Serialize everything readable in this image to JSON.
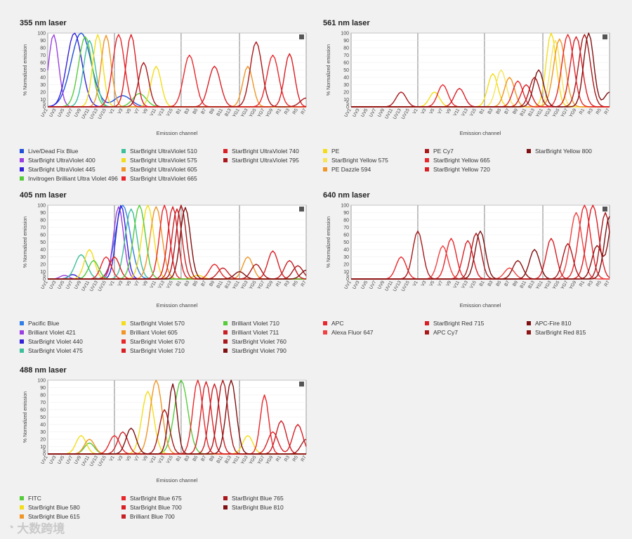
{
  "colors": {
    "blue": "#1f4ed8",
    "blue2": "#2f7fe6",
    "purple": "#9b3fe0",
    "violet": "#3420d8",
    "teal": "#3cbf9a",
    "green": "#55cc3a",
    "yellow": "#f3dd18",
    "orange": "#f09526",
    "red": "#e8262b",
    "red2": "#d91e24",
    "darkred": "#a8181b",
    "maroon": "#7e1010"
  },
  "watermark": "大数跨境",
  "chart_data": [
    {
      "type": "line",
      "title": "355 nm laser",
      "xlabel": "Emission channel",
      "ylabel": "% Normalized emission",
      "ylim": [
        0,
        100
      ],
      "yticks": [
        "0",
        "5",
        "10",
        "20",
        "30",
        "40",
        "50",
        "60",
        "70",
        "80",
        "90",
        "100"
      ],
      "categories": [
        "UV1",
        "UV3",
        "UV5",
        "UV7",
        "UV9",
        "UV11",
        "UV13",
        "UV15",
        "V1",
        "V3",
        "V5",
        "V7",
        "V9",
        "V11",
        "V13",
        "V15",
        "B1",
        "B3",
        "B5",
        "B7",
        "B9",
        "B11",
        "B13",
        "YG1",
        "YG3",
        "YG5",
        "YG7",
        "YG9",
        "R1",
        "R3",
        "R5",
        "R7"
      ],
      "legend_columns": 3,
      "series": [
        {
          "name": "Live/Dead Fix Blue",
          "color": "#1f4ed8",
          "peaks": [
            [
              4,
              100,
              1.2
            ],
            [
              9,
              15,
              1
            ]
          ]
        },
        {
          "name": "StarBright UltraViolet 400",
          "color": "#9b3fe0",
          "peaks": [
            [
              0.7,
              98,
              0.6
            ]
          ]
        },
        {
          "name": "StarBright UltraViolet 445",
          "color": "#3420d8",
          "peaks": [
            [
              3.2,
              100,
              0.9
            ]
          ]
        },
        {
          "name": "Invitrogen Brilliant Ultra Violet 496",
          "color": "#55cc3a",
          "peaks": [
            [
              4.5,
              95,
              0.8
            ],
            [
              11,
              18,
              0.8
            ]
          ]
        },
        {
          "name": "StarBright UltraViolet 510",
          "color": "#3cbf9a",
          "peaks": [
            [
              5,
              90,
              0.7
            ]
          ]
        },
        {
          "name": "StarBright UltraViolet 575",
          "color": "#f3dd18",
          "peaks": [
            [
              6,
              98,
              0.6
            ],
            [
              13,
              55,
              0.6
            ]
          ]
        },
        {
          "name": "StarBright UltraViolet 605",
          "color": "#f09526",
          "peaks": [
            [
              7,
              97,
              0.6
            ],
            [
              24,
              55,
              0.6
            ]
          ]
        },
        {
          "name": "StarBright UltraViolet 665",
          "color": "#e8262b",
          "peaks": [
            [
              8.5,
              98,
              0.7
            ],
            [
              17,
              70,
              0.7
            ],
            [
              27,
              70,
              0.7
            ]
          ]
        },
        {
          "name": "StarBright UltraViolet 740",
          "color": "#d91e24",
          "peaks": [
            [
              10,
              98,
              0.6
            ],
            [
              20,
              55,
              0.7
            ],
            [
              29,
              72,
              0.6
            ]
          ]
        },
        {
          "name": "StarBright UltraViolet 795",
          "color": "#a8181b",
          "peaks": [
            [
              11.5,
              60,
              0.6
            ],
            [
              25,
              88,
              0.7
            ],
            [
              31,
              12,
              0.7
            ]
          ]
        }
      ]
    },
    {
      "type": "line",
      "title": "561 nm laser",
      "xlabel": "Emission channel",
      "ylabel": "% Normalized emission",
      "ylim": [
        0,
        100
      ],
      "yticks": [
        "0",
        "5",
        "10",
        "20",
        "30",
        "40",
        "50",
        "60",
        "70",
        "80",
        "90",
        "100"
      ],
      "categories": [
        "UV1",
        "UV3",
        "UV5",
        "UV7",
        "UV9",
        "UV11",
        "UV13",
        "UV15",
        "V1",
        "V3",
        "V5",
        "V7",
        "V9",
        "V11",
        "V13",
        "V15",
        "B1",
        "B3",
        "B5",
        "B7",
        "B9",
        "B11",
        "B13",
        "YG1",
        "YG3",
        "YG5",
        "YG7",
        "YG9",
        "R1",
        "R3",
        "R5",
        "R7"
      ],
      "legend_columns": 3,
      "series": [
        {
          "name": "PE",
          "color": "#f3dd18",
          "peaks": [
            [
              24,
              100,
              0.6
            ],
            [
              17,
              45,
              0.6
            ],
            [
              10,
              20,
              0.6
            ]
          ]
        },
        {
          "name": "StarBright Yellow 575",
          "color": "#f7e45a",
          "peaks": [
            [
              24.5,
              90,
              0.6
            ],
            [
              18,
              50,
              0.6
            ]
          ]
        },
        {
          "name": "PE Dazzle 594",
          "color": "#f09526",
          "peaks": [
            [
              25,
              92,
              0.7
            ],
            [
              19,
              40,
              0.6
            ]
          ]
        },
        {
          "name": "PE Cy7",
          "color": "#a8181b",
          "peaks": [
            [
              28,
              98,
              0.7
            ],
            [
              22,
              40,
              0.6
            ],
            [
              6,
              20,
              0.6
            ]
          ]
        },
        {
          "name": "StarBright Yellow 665",
          "color": "#e8262b",
          "peaks": [
            [
              26,
              98,
              0.7
            ],
            [
              20,
              35,
              0.6
            ],
            [
              11,
              30,
              0.6
            ]
          ]
        },
        {
          "name": "StarBright Yellow 720",
          "color": "#d91e24",
          "peaks": [
            [
              27,
              95,
              0.7
            ],
            [
              21,
              30,
              0.6
            ],
            [
              13,
              25,
              0.6
            ]
          ]
        },
        {
          "name": "StarBright Yellow 800",
          "color": "#7e1010",
          "peaks": [
            [
              28.5,
              100,
              0.6
            ],
            [
              22.5,
              50,
              0.6
            ],
            [
              31,
              20,
              0.6
            ]
          ]
        }
      ]
    },
    {
      "type": "line",
      "title": "405 nm laser",
      "xlabel": "Emission channel",
      "ylabel": "% Normalized emission",
      "ylim": [
        0,
        100
      ],
      "yticks": [
        "0",
        "5",
        "10",
        "20",
        "30",
        "40",
        "50",
        "60",
        "70",
        "80",
        "90",
        "100"
      ],
      "categories": [
        "UV1",
        "UV3",
        "UV5",
        "UV7",
        "UV9",
        "UV11",
        "UV13",
        "UV15",
        "V1",
        "V3",
        "V5",
        "V7",
        "V9",
        "V11",
        "V13",
        "V15",
        "B1",
        "B3",
        "B5",
        "B7",
        "B9",
        "B11",
        "B13",
        "YG1",
        "YG3",
        "YG5",
        "YG7",
        "YG9",
        "R1",
        "R3",
        "R5",
        "R7"
      ],
      "legend_columns": 3,
      "series": [
        {
          "name": "Pacific Blue",
          "color": "#2f7fe6",
          "peaks": [
            [
              9,
              100,
              0.9
            ]
          ]
        },
        {
          "name": "Brilliant Violet 421",
          "color": "#9b3fe0",
          "peaks": [
            [
              8.5,
              98,
              0.6
            ],
            [
              2,
              5,
              0.5
            ]
          ]
        },
        {
          "name": "StarBright Violet 440",
          "color": "#3420d8",
          "peaks": [
            [
              8.8,
              100,
              0.6
            ],
            [
              3,
              6,
              0.5
            ]
          ]
        },
        {
          "name": "StarBright Violet 475",
          "color": "#3cbf9a",
          "peaks": [
            [
              10,
              95,
              0.7
            ],
            [
              4,
              33,
              0.7
            ]
          ]
        },
        {
          "name": "StarBright Violet 570",
          "color": "#f3dd18",
          "peaks": [
            [
              12,
              100,
              0.7
            ],
            [
              5,
              40,
              0.6
            ],
            [
              18,
              5,
              0.6
            ]
          ]
        },
        {
          "name": "Brilliant Violet 605",
          "color": "#f09526",
          "peaks": [
            [
              13,
              98,
              0.7
            ],
            [
              24,
              30,
              0.6
            ]
          ]
        },
        {
          "name": "StarBright Violet 670",
          "color": "#e8262b",
          "peaks": [
            [
              14,
              100,
              0.6
            ],
            [
              7,
              30,
              0.6
            ],
            [
              20,
              20,
              0.6
            ]
          ]
        },
        {
          "name": "StarBright Violet 710",
          "color": "#d91e24",
          "peaks": [
            [
              15,
              98,
              0.6
            ],
            [
              8,
              30,
              0.6
            ],
            [
              27,
              38,
              0.6
            ]
          ]
        },
        {
          "name": "Brilliant Violet 710",
          "color": "#55cc3a",
          "peaks": [
            [
              11,
              100,
              0.7
            ],
            [
              5.5,
              25,
              0.6
            ]
          ]
        },
        {
          "name": "Brilliant Violet 711",
          "color": "#c81f24",
          "peaks": [
            [
              15.5,
              95,
              0.6
            ],
            [
              21,
              15,
              0.6
            ],
            [
              29,
              25,
              0.6
            ]
          ]
        },
        {
          "name": "StarBright Violet 760",
          "color": "#a8181b",
          "peaks": [
            [
              16,
              100,
              0.6
            ],
            [
              25,
              20,
              0.6
            ],
            [
              30,
              18,
              0.6
            ]
          ]
        },
        {
          "name": "StarBright Violet 790",
          "color": "#7e1010",
          "peaks": [
            [
              16.5,
              97,
              0.6
            ],
            [
              23,
              10,
              0.6
            ],
            [
              31,
              12,
              0.6
            ]
          ]
        }
      ]
    },
    {
      "type": "line",
      "title": "640 nm laser",
      "xlabel": "Emission channel",
      "ylabel": "% Normalized emission",
      "ylim": [
        0,
        100
      ],
      "yticks": [
        "0",
        "5",
        "10",
        "20",
        "30",
        "40",
        "50",
        "60",
        "70",
        "80",
        "90",
        "100"
      ],
      "categories": [
        "UV1",
        "UV3",
        "UV5",
        "UV7",
        "UV9",
        "UV11",
        "UV13",
        "UV15",
        "V1",
        "V3",
        "V5",
        "V7",
        "V9",
        "V11",
        "V13",
        "V15",
        "B1",
        "B3",
        "B5",
        "B7",
        "B9",
        "B11",
        "B13",
        "YG1",
        "YG3",
        "YG5",
        "YG7",
        "YG9",
        "R1",
        "R3",
        "R5",
        "R7"
      ],
      "legend_columns": 3,
      "series": [
        {
          "name": "APC",
          "color": "#e8262b",
          "peaks": [
            [
              28,
              100,
              0.7
            ],
            [
              12,
              55,
              0.6
            ],
            [
              6,
              30,
              0.6
            ]
          ]
        },
        {
          "name": "Alexa Fluor 647",
          "color": "#f04040",
          "peaks": [
            [
              27,
              90,
              0.7
            ],
            [
              11,
              45,
              0.6
            ],
            [
              19,
              15,
              0.6
            ]
          ]
        },
        {
          "name": "StarBright Red 715",
          "color": "#d91e24",
          "peaks": [
            [
              29,
              100,
              0.7
            ],
            [
              14,
              52,
              0.6
            ],
            [
              24,
              55,
              0.6
            ]
          ]
        },
        {
          "name": "APC Cy7",
          "color": "#a8181b",
          "peaks": [
            [
              30.5,
              90,
              0.6
            ],
            [
              15,
              62,
              0.6
            ],
            [
              26,
              48,
              0.6
            ],
            [
              8,
              65,
              0.6
            ]
          ]
        },
        {
          "name": "APC-Fire 810",
          "color": "#7e1010",
          "peaks": [
            [
              31,
              85,
              0.6
            ],
            [
              22,
              40,
              0.6
            ],
            [
              15.5,
              65,
              0.6
            ]
          ]
        },
        {
          "name": "StarBright Red 815",
          "color": "#8b1414",
          "peaks": [
            [
              31.5,
              88,
              0.6
            ],
            [
              29.5,
              45,
              0.6
            ],
            [
              20,
              25,
              0.6
            ]
          ]
        }
      ]
    },
    {
      "type": "line",
      "title": "488 nm laser",
      "xlabel": "Emission channel",
      "ylabel": "% Normalized emission",
      "ylim": [
        0,
        100
      ],
      "yticks": [
        "0",
        "5",
        "10",
        "20",
        "30",
        "40",
        "50",
        "60",
        "70",
        "80",
        "90",
        "100"
      ],
      "categories": [
        "UV1",
        "UV3",
        "UV5",
        "UV7",
        "UV9",
        "UV11",
        "UV13",
        "UV15",
        "V1",
        "V3",
        "V5",
        "V7",
        "V9",
        "V11",
        "V13",
        "V15",
        "B1",
        "B3",
        "B5",
        "B7",
        "B9",
        "B11",
        "B13",
        "YG1",
        "YG3",
        "YG5",
        "YG7",
        "YG9",
        "R1",
        "R3",
        "R5",
        "R7"
      ],
      "legend_columns": 3,
      "series": [
        {
          "name": "FITC",
          "color": "#55cc3a",
          "peaks": [
            [
              16,
              100,
              0.8
            ],
            [
              5,
              15,
              0.6
            ]
          ]
        },
        {
          "name": "StarBright Blue 580",
          "color": "#f3dd18",
          "peaks": [
            [
              12,
              85,
              0.7
            ],
            [
              4,
              25,
              0.6
            ],
            [
              24,
              25,
              0.6
            ]
          ]
        },
        {
          "name": "StarBright Blue 615",
          "color": "#f09526",
          "peaks": [
            [
              13,
              100,
              0.7
            ],
            [
              5,
              20,
              0.6
            ]
          ]
        },
        {
          "name": "StarBright Blue 675",
          "color": "#e8262b",
          "peaks": [
            [
              18,
              100,
              0.6
            ],
            [
              8,
              25,
              0.6
            ],
            [
              26,
              80,
              0.5
            ]
          ]
        },
        {
          "name": "StarBright Blue 700",
          "color": "#d91e24",
          "peaks": [
            [
              19,
              98,
              0.6
            ],
            [
              27,
              30,
              0.6
            ],
            [
              30,
              40,
              0.6
            ]
          ]
        },
        {
          "name": "Brilliant Blue 700",
          "color": "#c81f24",
          "peaks": [
            [
              20,
              95,
              0.6
            ],
            [
              28,
              45,
              0.6
            ],
            [
              9,
              30,
              0.6
            ]
          ]
        },
        {
          "name": "StarBright Blue 765",
          "color": "#a8181b",
          "peaks": [
            [
              21,
              100,
              0.6
            ],
            [
              14,
              60,
              0.6
            ],
            [
              31,
              20,
              0.6
            ]
          ]
        },
        {
          "name": "StarBright Blue 810",
          "color": "#7e1010",
          "peaks": [
            [
              22,
              100,
              0.6
            ],
            [
              15,
              95,
              0.5
            ],
            [
              10,
              35,
              0.6
            ]
          ]
        }
      ]
    }
  ]
}
